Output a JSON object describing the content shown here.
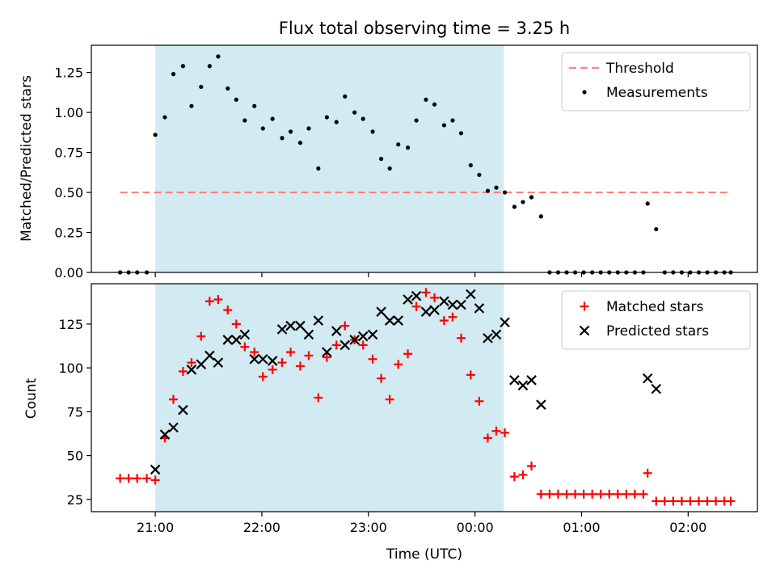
{
  "chart_data": {
    "type": "scatter",
    "title": "Flux total observing time = 3.25 h",
    "xlabel": "Time (UTC)",
    "x_ticks": [
      "21:00",
      "22:00",
      "23:00",
      "00:00",
      "01:00",
      "02:00"
    ],
    "x_tick_hours": [
      0,
      1,
      2,
      3,
      4,
      5
    ],
    "x_reference_time": "21:00",
    "x_range_hours": [
      -0.6,
      5.65
    ],
    "shaded_interval_hours": [
      0.0,
      3.27
    ],
    "colors": {
      "shade": "#add8e6",
      "threshold": "#ff7f7f",
      "matched": "#ff0000",
      "predicted": "#000000",
      "measurements": "#000000"
    },
    "panels": [
      {
        "id": "ratio",
        "ylabel": "Matched/Predicted stars",
        "ylim": [
          0,
          1.42
        ],
        "y_ticks": [
          0,
          0.25,
          0.5,
          0.75,
          1.0,
          1.25
        ],
        "y_tick_labels": [
          "0.00",
          "0.25",
          "0.50",
          "0.75",
          "1.00",
          "1.25"
        ],
        "legend": {
          "position": "top-right",
          "entries": [
            "Threshold",
            "Measurements"
          ]
        },
        "threshold": {
          "name": "Threshold",
          "y": 0.5,
          "x_range_hours": [
            -0.33,
            5.4
          ]
        },
        "measurements": {
          "name": "Measurements",
          "points": [
            [
              -0.33,
              0.0
            ],
            [
              -0.25,
              0.0
            ],
            [
              -0.17,
              0.0
            ],
            [
              -0.08,
              0.0
            ],
            [
              0.0,
              0.86
            ],
            [
              0.09,
              0.97
            ],
            [
              0.17,
              1.24
            ],
            [
              0.26,
              1.29
            ],
            [
              0.34,
              1.04
            ],
            [
              0.43,
              1.16
            ],
            [
              0.51,
              1.29
            ],
            [
              0.59,
              1.35
            ],
            [
              0.68,
              1.15
            ],
            [
              0.76,
              1.08
            ],
            [
              0.84,
              0.95
            ],
            [
              0.93,
              1.04
            ],
            [
              1.01,
              0.9
            ],
            [
              1.1,
              0.96
            ],
            [
              1.19,
              0.84
            ],
            [
              1.27,
              0.88
            ],
            [
              1.36,
              0.81
            ],
            [
              1.44,
              0.9
            ],
            [
              1.53,
              0.65
            ],
            [
              1.61,
              0.97
            ],
            [
              1.7,
              0.94
            ],
            [
              1.78,
              1.1
            ],
            [
              1.87,
              1.0
            ],
            [
              1.95,
              0.96
            ],
            [
              2.04,
              0.88
            ],
            [
              2.12,
              0.71
            ],
            [
              2.2,
              0.65
            ],
            [
              2.28,
              0.8
            ],
            [
              2.37,
              0.78
            ],
            [
              2.45,
              0.95
            ],
            [
              2.54,
              1.08
            ],
            [
              2.62,
              1.05
            ],
            [
              2.71,
              0.92
            ],
            [
              2.79,
              0.95
            ],
            [
              2.87,
              0.87
            ],
            [
              2.96,
              0.67
            ],
            [
              3.04,
              0.61
            ],
            [
              3.12,
              0.51
            ],
            [
              3.2,
              0.53
            ],
            [
              3.28,
              0.5
            ],
            [
              3.37,
              0.41
            ],
            [
              3.45,
              0.44
            ],
            [
              3.53,
              0.47
            ],
            [
              3.62,
              0.35
            ],
            [
              3.7,
              0.0
            ],
            [
              3.78,
              0.0
            ],
            [
              3.86,
              0.0
            ],
            [
              3.94,
              0.0
            ],
            [
              4.02,
              0.0
            ],
            [
              4.1,
              0.0
            ],
            [
              4.18,
              0.0
            ],
            [
              4.26,
              0.0
            ],
            [
              4.34,
              0.0
            ],
            [
              4.42,
              0.0
            ],
            [
              4.5,
              0.0
            ],
            [
              4.58,
              0.0
            ],
            [
              4.62,
              0.43
            ],
            [
              4.7,
              0.27
            ],
            [
              4.78,
              0.0
            ],
            [
              4.86,
              0.0
            ],
            [
              4.94,
              0.0
            ],
            [
              5.02,
              0.0
            ],
            [
              5.1,
              0.0
            ],
            [
              5.18,
              0.0
            ],
            [
              5.26,
              0.0
            ],
            [
              5.34,
              0.0
            ],
            [
              5.4,
              0.0
            ]
          ]
        }
      },
      {
        "id": "counts",
        "ylabel": "Count",
        "ylim": [
          18,
          148
        ],
        "y_ticks": [
          25,
          50,
          75,
          100,
          125
        ],
        "y_tick_labels": [
          "25",
          "50",
          "75",
          "100",
          "125"
        ],
        "legend": {
          "position": "top-right",
          "entries": [
            "Matched stars",
            "Predicted stars"
          ]
        },
        "series": [
          {
            "name": "Matched stars",
            "marker": "+",
            "points": [
              [
                -0.33,
                37
              ],
              [
                -0.25,
                37
              ],
              [
                -0.17,
                37
              ],
              [
                -0.08,
                37
              ],
              [
                0.0,
                36
              ],
              [
                0.09,
                60
              ],
              [
                0.17,
                82
              ],
              [
                0.26,
                98
              ],
              [
                0.34,
                103
              ],
              [
                0.43,
                118
              ],
              [
                0.51,
                138
              ],
              [
                0.59,
                139
              ],
              [
                0.68,
                133
              ],
              [
                0.76,
                125
              ],
              [
                0.84,
                112
              ],
              [
                0.93,
                109
              ],
              [
                1.01,
                95
              ],
              [
                1.1,
                99
              ],
              [
                1.19,
                103
              ],
              [
                1.27,
                109
              ],
              [
                1.36,
                101
              ],
              [
                1.44,
                107
              ],
              [
                1.53,
                83
              ],
              [
                1.61,
                106
              ],
              [
                1.7,
                113
              ],
              [
                1.78,
                124
              ],
              [
                1.87,
                116
              ],
              [
                1.95,
                113
              ],
              [
                2.04,
                105
              ],
              [
                2.12,
                94
              ],
              [
                2.2,
                82
              ],
              [
                2.28,
                102
              ],
              [
                2.37,
                108
              ],
              [
                2.45,
                135
              ],
              [
                2.54,
                143
              ],
              [
                2.62,
                140
              ],
              [
                2.71,
                127
              ],
              [
                2.79,
                129
              ],
              [
                2.87,
                117
              ],
              [
                2.96,
                96
              ],
              [
                3.04,
                81
              ],
              [
                3.12,
                60
              ],
              [
                3.2,
                64
              ],
              [
                3.28,
                63
              ],
              [
                3.37,
                38
              ],
              [
                3.45,
                39
              ],
              [
                3.53,
                44
              ],
              [
                3.62,
                28
              ],
              [
                3.7,
                28
              ],
              [
                3.78,
                28
              ],
              [
                3.86,
                28
              ],
              [
                3.94,
                28
              ],
              [
                4.02,
                28
              ],
              [
                4.1,
                28
              ],
              [
                4.18,
                28
              ],
              [
                4.26,
                28
              ],
              [
                4.34,
                28
              ],
              [
                4.42,
                28
              ],
              [
                4.5,
                28
              ],
              [
                4.58,
                28
              ],
              [
                4.62,
                40
              ],
              [
                4.7,
                24
              ],
              [
                4.78,
                24
              ],
              [
                4.86,
                24
              ],
              [
                4.94,
                24
              ],
              [
                5.02,
                24
              ],
              [
                5.1,
                24
              ],
              [
                5.18,
                24
              ],
              [
                5.26,
                24
              ],
              [
                5.34,
                24
              ],
              [
                5.4,
                24
              ]
            ]
          },
          {
            "name": "Predicted stars",
            "marker": "x",
            "points": [
              [
                0.0,
                42
              ],
              [
                0.09,
                62
              ],
              [
                0.17,
                66
              ],
              [
                0.26,
                76
              ],
              [
                0.34,
                99
              ],
              [
                0.43,
                102
              ],
              [
                0.51,
                107
              ],
              [
                0.59,
                103
              ],
              [
                0.68,
                116
              ],
              [
                0.76,
                116
              ],
              [
                0.84,
                119
              ],
              [
                0.93,
                105
              ],
              [
                1.01,
                105
              ],
              [
                1.1,
                104
              ],
              [
                1.19,
                122
              ],
              [
                1.27,
                124
              ],
              [
                1.36,
                124
              ],
              [
                1.44,
                119
              ],
              [
                1.53,
                127
              ],
              [
                1.61,
                109
              ],
              [
                1.7,
                121
              ],
              [
                1.78,
                113
              ],
              [
                1.87,
                116
              ],
              [
                1.95,
                118
              ],
              [
                2.04,
                119
              ],
              [
                2.12,
                132
              ],
              [
                2.2,
                127
              ],
              [
                2.28,
                127
              ],
              [
                2.37,
                139
              ],
              [
                2.45,
                141
              ],
              [
                2.54,
                132
              ],
              [
                2.62,
                133
              ],
              [
                2.71,
                138
              ],
              [
                2.79,
                136
              ],
              [
                2.87,
                136
              ],
              [
                2.96,
                142
              ],
              [
                3.04,
                134
              ],
              [
                3.12,
                117
              ],
              [
                3.2,
                119
              ],
              [
                3.28,
                126
              ],
              [
                3.37,
                93
              ],
              [
                3.45,
                90
              ],
              [
                3.53,
                93
              ],
              [
                3.62,
                79
              ],
              [
                4.62,
                94
              ],
              [
                4.7,
                88
              ]
            ]
          }
        ]
      }
    ]
  }
}
